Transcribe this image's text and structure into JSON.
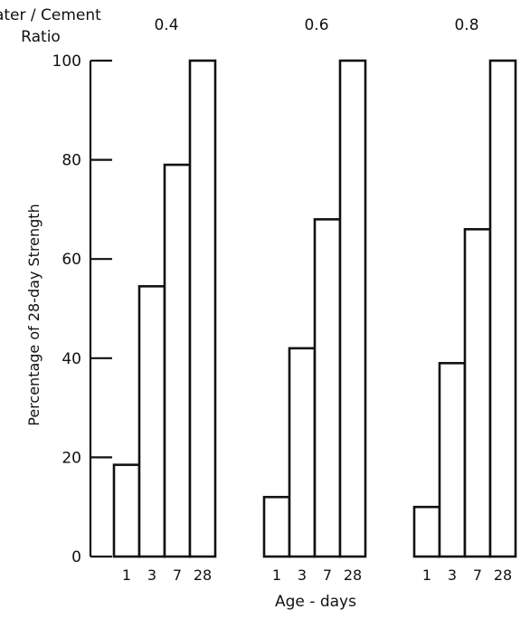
{
  "chart_data": {
    "type": "bar",
    "xlabel": "Age - days",
    "ylabel": "Percentage of 28-day Strength",
    "group_title": "Water / Cement\nRatio",
    "ylim": [
      0,
      100
    ],
    "yticks": [
      0,
      20,
      40,
      60,
      80,
      100
    ],
    "categories": [
      "1",
      "3",
      "7",
      "28"
    ],
    "groups": [
      {
        "label": "0.4",
        "values": [
          18.5,
          54.5,
          79,
          100
        ]
      },
      {
        "label": "0.6",
        "values": [
          12,
          42,
          68,
          100
        ]
      },
      {
        "label": "0.8",
        "values": [
          10,
          39,
          66,
          100
        ]
      }
    ],
    "grid": false,
    "colors": {
      "bar_fill": "#ffffff",
      "bar_stroke": "#111111",
      "text": "#111111"
    }
  }
}
